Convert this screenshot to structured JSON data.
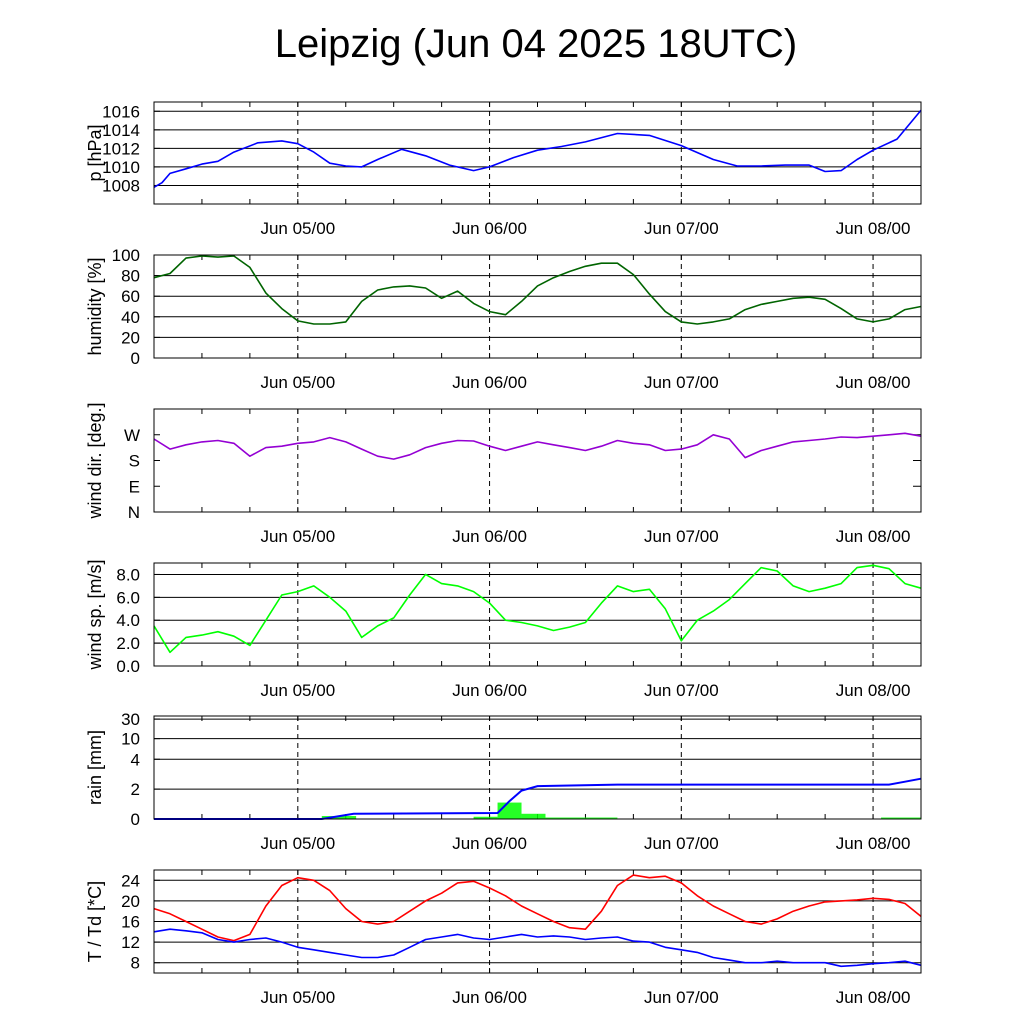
{
  "title": "Leipzig (Jun 04 2025 18UTC)",
  "x_ticks": [
    "Jun 05/00",
    "Jun 06/00",
    "Jun 07/00",
    "Jun 08/00"
  ],
  "x_range_hours": [
    -18,
    78
  ],
  "chart_data": [
    {
      "type": "line",
      "ylabel": "p [hPa]",
      "ylim": [
        1006,
        1017
      ],
      "yticks": [
        1008,
        1010,
        1012,
        1014,
        1016
      ],
      "grid": true,
      "color": "#0000ff",
      "series": [
        {
          "x": [
            -18,
            -17,
            -16,
            -14,
            -12,
            -10,
            -8,
            -5,
            -2,
            0,
            2,
            4,
            6,
            8,
            10,
            13,
            16,
            19,
            22,
            24,
            27,
            30,
            33,
            36,
            40,
            44,
            48,
            52,
            55,
            58,
            61,
            64,
            66,
            68,
            70,
            72,
            75,
            78
          ],
          "y": [
            1007.8,
            1008.3,
            1009.3,
            1009.8,
            1010.3,
            1010.6,
            1011.6,
            1012.6,
            1012.8,
            1012.5,
            1011.6,
            1010.4,
            1010.1,
            1010.0,
            1010.8,
            1011.9,
            1011.2,
            1010.2,
            1009.6,
            1010.0,
            1011.0,
            1011.8,
            1012.2,
            1012.7,
            1013.6,
            1013.4,
            1012.3,
            1010.8,
            1010.1,
            1010.1,
            1010.2,
            1010.2,
            1009.5,
            1009.6,
            1010.8,
            1011.8,
            1013.0,
            1016.1
          ]
        }
      ]
    },
    {
      "type": "line",
      "ylabel": "humidity [%]",
      "ylim": [
        0,
        100
      ],
      "yticks": [
        0,
        20,
        40,
        60,
        80,
        100
      ],
      "grid": true,
      "color": "#006400",
      "series": [
        {
          "x": [
            -18,
            -16,
            -14,
            -12,
            -10,
            -8,
            -6,
            -4,
            -2,
            0,
            2,
            4,
            6,
            8,
            10,
            12,
            14,
            16,
            18,
            20,
            22,
            24,
            26,
            28,
            30,
            32,
            34,
            36,
            38,
            40,
            42,
            44,
            46,
            48,
            50,
            52,
            54,
            56,
            58,
            60,
            62,
            64,
            66,
            68,
            70,
            72,
            74,
            76,
            78
          ],
          "y": [
            78,
            82,
            97,
            99,
            98,
            99,
            88,
            63,
            48,
            36,
            33,
            33,
            35,
            55,
            66,
            69,
            70,
            68,
            58,
            65,
            53,
            45,
            42,
            55,
            70,
            78,
            84,
            89,
            92,
            92,
            81,
            62,
            45,
            35,
            33,
            35,
            38,
            47,
            52,
            55,
            58,
            59,
            57,
            48,
            38,
            35,
            38,
            47,
            50
          ]
        }
      ]
    },
    {
      "type": "line",
      "ylabel": "wind dir. [deg.]",
      "ylim": [
        0,
        360
      ],
      "yticks": [
        0,
        90,
        180,
        270
      ],
      "ytick_labels": [
        "N",
        "E",
        "S",
        "W"
      ],
      "grid": false,
      "color": "#9400d3",
      "series": [
        {
          "x": [
            -18,
            -16,
            -14,
            -12,
            -10,
            -8,
            -6,
            -4,
            -2,
            0,
            2,
            4,
            6,
            8,
            10,
            12,
            14,
            16,
            18,
            20,
            22,
            24,
            26,
            28,
            30,
            32,
            34,
            36,
            38,
            40,
            42,
            44,
            46,
            48,
            50,
            52,
            54,
            56,
            58,
            60,
            62,
            64,
            66,
            68,
            70,
            72,
            74,
            76,
            78
          ],
          "y": [
            255,
            220,
            235,
            245,
            250,
            240,
            195,
            225,
            230,
            240,
            245,
            260,
            245,
            220,
            195,
            185,
            200,
            225,
            240,
            250,
            248,
            230,
            215,
            230,
            245,
            235,
            225,
            215,
            230,
            250,
            240,
            235,
            215,
            220,
            235,
            270,
            255,
            190,
            215,
            230,
            245,
            250,
            255,
            262,
            260,
            265,
            270,
            275,
            265
          ]
        }
      ]
    },
    {
      "type": "line",
      "ylabel": "wind sp. [m/s]",
      "ylim": [
        0,
        9
      ],
      "yticks": [
        0.0,
        2.0,
        4.0,
        6.0,
        8.0
      ],
      "grid": true,
      "color": "#00ff00",
      "series": [
        {
          "x": [
            -18,
            -16,
            -14,
            -12,
            -10,
            -8,
            -6,
            -4,
            -2,
            0,
            2,
            4,
            6,
            8,
            10,
            12,
            14,
            16,
            18,
            20,
            22,
            24,
            26,
            28,
            30,
            32,
            34,
            36,
            38,
            40,
            42,
            44,
            46,
            48,
            50,
            52,
            54,
            56,
            58,
            60,
            62,
            64,
            66,
            68,
            70,
            72,
            74,
            76,
            78
          ],
          "y": [
            3.5,
            1.2,
            2.5,
            2.7,
            3.0,
            2.6,
            1.8,
            4.0,
            6.2,
            6.5,
            7.0,
            6.0,
            4.8,
            2.5,
            3.5,
            4.2,
            6.2,
            8.0,
            7.2,
            7.0,
            6.5,
            5.5,
            4.0,
            3.8,
            3.5,
            3.1,
            3.4,
            3.8,
            5.5,
            7.0,
            6.5,
            6.7,
            5.0,
            2.2,
            4.0,
            4.8,
            5.8,
            7.2,
            8.6,
            8.3,
            7.0,
            6.5,
            6.8,
            7.2,
            8.6,
            8.8,
            8.5,
            7.2,
            6.8
          ]
        }
      ]
    },
    {
      "type": "bar+line",
      "ylabel": "rain [mm]",
      "ytick_labels": [
        "0",
        "2",
        "4",
        "10",
        "30"
      ],
      "grid": true,
      "bar_color": "#00ff00",
      "line_color": "#0000ff",
      "bars": [
        {
          "x0": 3.0,
          "x1": 7.3,
          "value": 0.2
        },
        {
          "x0": 22.0,
          "x1": 25.0,
          "value": 0.15
        },
        {
          "x0": 25.0,
          "x1": 28.0,
          "value": 1.1
        },
        {
          "x0": 28.0,
          "x1": 31.0,
          "value": 0.35
        },
        {
          "x0": 31.0,
          "x1": 40.0,
          "value": 0.1
        },
        {
          "x0": 73.0,
          "x1": 78.0,
          "value": 0.1
        }
      ],
      "cumulative": {
        "x": [
          -18,
          3,
          7,
          25,
          26.5,
          28,
          30,
          40,
          55,
          74,
          76,
          78
        ],
        "y": [
          0,
          0,
          0.35,
          0.4,
          1.2,
          1.9,
          2.2,
          2.3,
          2.3,
          2.3,
          2.5,
          2.7
        ]
      }
    },
    {
      "type": "line",
      "ylabel": "T / Td [*C]",
      "ylim": [
        6,
        26
      ],
      "yticks": [
        8,
        12,
        16,
        20,
        24
      ],
      "grid": true,
      "series": [
        {
          "color": "#ff0000",
          "x": [
            -18,
            -16,
            -14,
            -12,
            -10,
            -8,
            -6,
            -4,
            -2,
            0,
            2,
            4,
            6,
            8,
            10,
            12,
            14,
            16,
            18,
            20,
            22,
            24,
            26,
            28,
            30,
            32,
            34,
            36,
            38,
            40,
            42,
            44,
            46,
            48,
            50,
            52,
            54,
            56,
            58,
            60,
            62,
            64,
            66,
            68,
            70,
            72,
            74,
            76,
            78
          ],
          "y": [
            18.5,
            17.5,
            16.0,
            14.5,
            13.0,
            12.3,
            13.5,
            19.0,
            23.0,
            24.5,
            24.0,
            22.0,
            18.5,
            16.0,
            15.5,
            16.0,
            18.0,
            20.0,
            21.5,
            23.5,
            23.8,
            22.5,
            21.0,
            19.0,
            17.5,
            16.0,
            14.8,
            14.5,
            18.0,
            23.0,
            25.0,
            24.5,
            24.8,
            23.5,
            21.0,
            19.0,
            17.5,
            16.0,
            15.5,
            16.5,
            18.0,
            19.0,
            19.8,
            20.0,
            20.2,
            20.5,
            20.3,
            19.5,
            17.0
          ]
        },
        {
          "color": "#0000ff",
          "x": [
            -18,
            -16,
            -14,
            -12,
            -10,
            -8,
            -6,
            -4,
            -2,
            0,
            2,
            4,
            6,
            8,
            10,
            12,
            14,
            16,
            18,
            20,
            22,
            24,
            26,
            28,
            30,
            32,
            34,
            36,
            38,
            40,
            42,
            44,
            46,
            48,
            50,
            52,
            54,
            56,
            58,
            60,
            62,
            64,
            66,
            68,
            70,
            72,
            74,
            76,
            78
          ],
          "y": [
            14.0,
            14.5,
            14.2,
            13.8,
            12.5,
            12.0,
            12.5,
            12.8,
            12.0,
            11.0,
            10.5,
            10.0,
            9.5,
            9.0,
            9.0,
            9.5,
            11.0,
            12.5,
            13.0,
            13.5,
            12.8,
            12.5,
            13.0,
            13.5,
            13.0,
            13.2,
            13.0,
            12.5,
            12.8,
            13.0,
            12.2,
            12.0,
            11.0,
            10.5,
            10.0,
            9.0,
            8.5,
            8.0,
            8.0,
            8.3,
            8.0,
            8.0,
            8.0,
            7.3,
            7.5,
            7.8,
            8.0,
            8.3,
            7.5
          ]
        }
      ]
    }
  ]
}
